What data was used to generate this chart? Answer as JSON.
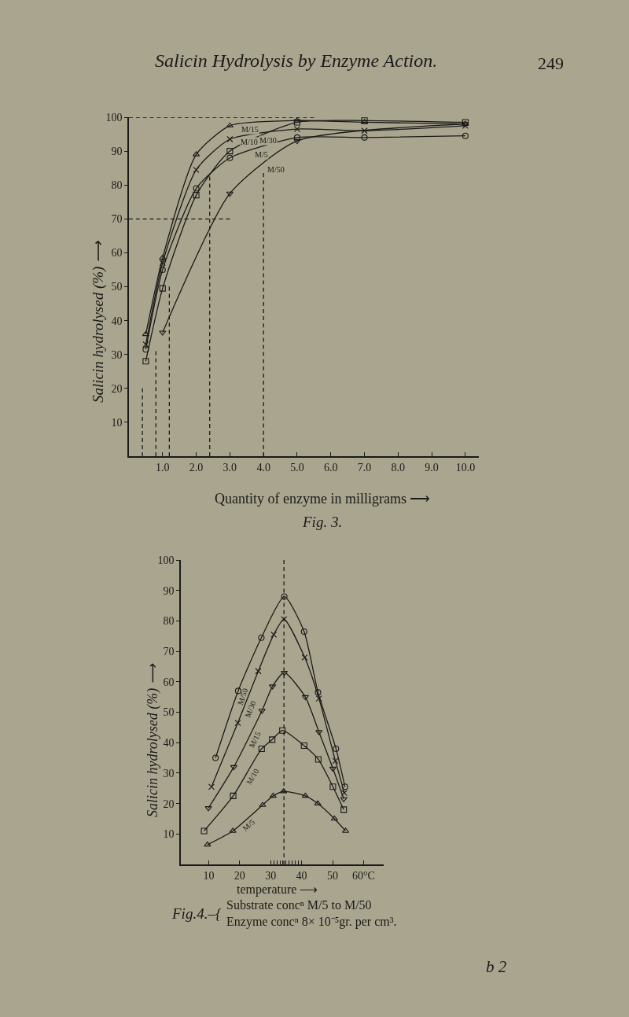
{
  "chart_data": [
    {
      "type": "line",
      "title": "Salicin Hydrolysis by Enzyme Action.",
      "xlabel": "Quantity of enzyme in milligrams ⟶",
      "ylabel": "Salicin hydrolysed (%) ⟶",
      "xlim": [
        0,
        10.4
      ],
      "ylim": [
        0,
        100
      ],
      "xticks": [
        {
          "value": 1,
          "label": "1.0"
        },
        {
          "value": 2,
          "label": "2.0"
        },
        {
          "value": 3,
          "label": "3.0"
        },
        {
          "value": 4,
          "label": "4.0"
        },
        {
          "value": 5,
          "label": "5.0"
        },
        {
          "value": 6,
          "label": "6.0"
        },
        {
          "value": 7,
          "label": "7.0"
        },
        {
          "value": 8,
          "label": "8.0"
        },
        {
          "value": 9,
          "label": "9.0"
        },
        {
          "value": 10,
          "label": "10.0"
        }
      ],
      "yticks": [
        10,
        20,
        30,
        40,
        50,
        60,
        70,
        80,
        90,
        100
      ],
      "series": [
        {
          "color": "#1a1a18",
          "marker": "none",
          "line_style": "dashed",
          "x": [
            0,
            5.5
          ],
          "values": [
            100,
            100
          ]
        },
        {
          "color": "#1a1a18",
          "marker": "none",
          "line_style": "dashed",
          "x": [
            0,
            3
          ],
          "values": [
            70,
            70
          ]
        },
        {
          "color": "#1a1a18",
          "marker": "none",
          "line_style": "dashed",
          "x": [
            0.4,
            0.4
          ],
          "values": [
            0,
            20
          ]
        },
        {
          "color": "#1a1a18",
          "marker": "none",
          "line_style": "dashed",
          "x": [
            0.8,
            0.8
          ],
          "values": [
            0,
            31
          ]
        },
        {
          "color": "#1a1a18",
          "marker": "none",
          "line_style": "dashed",
          "x": [
            1.2,
            1.2
          ],
          "values": [
            0,
            50
          ]
        },
        {
          "color": "#1a1a18",
          "marker": "none",
          "line_style": "dashed",
          "x": [
            2.4,
            2.4
          ],
          "values": [
            0,
            82.5
          ]
        },
        {
          "color": "#1a1a18",
          "marker": "none",
          "line_style": "dashed",
          "x": [
            4,
            4
          ],
          "values": [
            0,
            83.5
          ]
        },
        {
          "name": "M/5",
          "color": "#1a1a18",
          "marker": "circle",
          "x": [
            0.5,
            1,
            2,
            3,
            5,
            7,
            10
          ],
          "values": [
            31.5,
            55,
            79,
            88,
            94,
            94,
            94.5
          ]
        },
        {
          "name": "M/10",
          "color": "#1a1a18",
          "marker": "cross",
          "x": [
            0.5,
            1,
            2,
            3,
            5,
            7,
            10
          ],
          "values": [
            33,
            57,
            84.5,
            93.5,
            96.5,
            96,
            97.5
          ]
        },
        {
          "name": "M/15",
          "color": "#1a1a18",
          "marker": "triangle",
          "x": [
            0.5,
            1,
            2,
            3,
            5,
            7,
            10
          ],
          "values": [
            36,
            58.5,
            89,
            97.5,
            99,
            98.5,
            98
          ]
        },
        {
          "name": "M/30",
          "color": "#1a1a18",
          "marker": "square",
          "x": [
            0.5,
            1,
            2,
            3,
            5,
            7,
            10
          ],
          "values": [
            28,
            49.5,
            77,
            90,
            98.5,
            99,
            98.5
          ]
        },
        {
          "name": "M/50",
          "color": "#1a1a18",
          "marker": "triangle-down",
          "x": [
            1,
            3,
            5,
            10
          ],
          "values": [
            36.5,
            77.5,
            93,
            98
          ]
        }
      ],
      "annotations": [
        "249",
        "Fig. 3."
      ]
    },
    {
      "type": "line",
      "xlabel": "temperature ⟶",
      "ylabel": "Salicin hydrolysed (%) ⟶",
      "xlim": [
        1,
        66.5
      ],
      "ylim": [
        0,
        100
      ],
      "xticks": [
        10,
        20,
        30,
        {
          "value": 31,
          "label": null
        },
        {
          "value": 32,
          "label": null
        },
        {
          "value": 33,
          "label": null
        },
        {
          "value": 34,
          "label": null
        },
        {
          "value": 35,
          "label": null
        },
        {
          "value": 36,
          "label": null
        },
        {
          "value": 37,
          "label": null
        },
        {
          "value": 38,
          "label": null
        },
        {
          "value": 39,
          "label": null
        },
        40,
        50,
        {
          "value": 60,
          "label": "60°C"
        }
      ],
      "yticks": [
        10,
        20,
        30,
        40,
        50,
        60,
        70,
        80,
        90,
        100
      ],
      "ref_lines": [
        {
          "axis": "x",
          "value": 34.3,
          "line_style": "dashed",
          "color": "#1a1a18"
        }
      ],
      "series": [
        {
          "name": "M/50",
          "color": "#1a1a18",
          "marker": "circle",
          "x": [
            12.2,
            19.5,
            27.0,
            34.4,
            40.8,
            45.3,
            51.1,
            54.0
          ],
          "values": [
            35,
            57,
            74.5,
            88,
            76.5,
            56.5,
            38,
            25.5
          ]
        },
        {
          "name": "M/30",
          "color": "#1a1a18",
          "marker": "cross",
          "x": [
            10.9,
            19.4,
            26.0,
            31.0,
            34.3,
            41.0,
            45.6,
            50.9,
            53.8
          ],
          "values": [
            25.5,
            46.5,
            63.5,
            75.5,
            80.5,
            68,
            54.5,
            34,
            23.5
          ]
        },
        {
          "name": "M/15",
          "color": "#1a1a18",
          "marker": "triangle-down",
          "x": [
            9.9,
            18.1,
            27.2,
            30.6,
            34.4,
            41.2,
            45.6,
            50.1,
            53.6
          ],
          "values": [
            18.5,
            32,
            50.5,
            58.5,
            63,
            55,
            43.5,
            31.5,
            21.5
          ]
        },
        {
          "name": "M/10",
          "color": "#1a1a18",
          "marker": "square",
          "x": [
            8.5,
            17.9,
            27.1,
            30.5,
            33.8,
            40.8,
            45.4,
            50.1,
            53.6
          ],
          "values": [
            11,
            22.5,
            38,
            41,
            44,
            39,
            34.5,
            25.5,
            18
          ]
        },
        {
          "name": "M/5",
          "color": "#1a1a18",
          "marker": "triangle",
          "x": [
            9.6,
            17.8,
            27.4,
            30.8,
            34.2,
            41.2,
            45.2,
            50.6,
            54.2
          ],
          "values": [
            6.5,
            11,
            19.5,
            22.5,
            24,
            22.5,
            20,
            15,
            11
          ]
        }
      ],
      "annotations": [
        "Fig.4.–{",
        "Substrate concⁿ M/5 to M/50\nEnzyme concⁿ 8× 10⁻⁵gr. per cm³.",
        "b 2"
      ]
    }
  ]
}
